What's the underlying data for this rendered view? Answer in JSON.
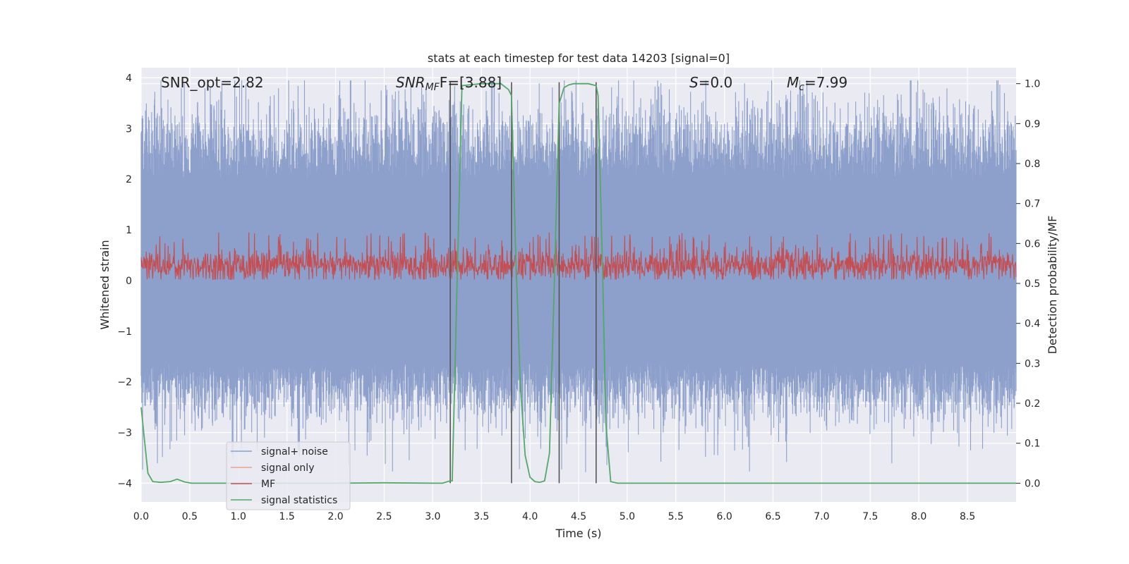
{
  "chart_data": {
    "type": "line",
    "title": "stats at each timestep for test data 14203 [signal=0]",
    "xlabel": "Time (s)",
    "ylabel_left": "Whitened strain",
    "ylabel_right": "Detection probability/MF",
    "xlim": [
      0,
      9.0
    ],
    "ylim_left": [
      -4.37,
      4.2
    ],
    "ylim_right": [
      -0.047,
      1.04
    ],
    "x_ticks": [
      "0.0",
      "0.5",
      "1.0",
      "1.5",
      "2.0",
      "2.5",
      "3.0",
      "3.5",
      "4.0",
      "4.5",
      "5.0",
      "5.5",
      "6.0",
      "6.5",
      "7.0",
      "7.5",
      "8.0",
      "8.5"
    ],
    "y_left_ticks": [
      "−4",
      "−3",
      "−2",
      "−1",
      "0",
      "1",
      "2",
      "3",
      "4"
    ],
    "y_right_ticks": [
      "0.0",
      "0.1",
      "0.2",
      "0.3",
      "0.4",
      "0.5",
      "0.6",
      "0.7",
      "0.8",
      "0.9",
      "1.0"
    ],
    "grid": true,
    "legend_position": "lower-left",
    "annotations": {
      "snr_opt": "SNR_opt=2.82",
      "snr_mf_main": "SNR",
      "snr_mf_sub": "MF",
      "snr_mf_rest": "F=[3.88]",
      "s_main": "S",
      "s_rest": "=0.0",
      "mc_main": "M",
      "mc_sub": "c",
      "mc_rest": "=7.99"
    },
    "series": [
      {
        "name": "signal+ noise",
        "axis": "left",
        "color": "#8da0cb",
        "description_envelope": [
          -2.5,
          3.6
        ]
      },
      {
        "name": "signal only",
        "axis": "left",
        "color": "#e8a48c"
      },
      {
        "name": "MF",
        "axis": "left",
        "color": "#c44e52"
      },
      {
        "name": "signal statistics",
        "axis": "right",
        "color": "#55a868",
        "x": [
          0.0,
          0.07,
          0.12,
          0.2,
          0.3,
          0.37,
          0.45,
          0.52,
          1.0,
          1.5,
          2.0,
          2.5,
          3.0,
          3.1,
          3.18,
          3.2,
          3.25,
          3.3,
          3.5,
          3.7,
          3.78,
          3.81,
          3.85,
          3.9,
          3.95,
          4.0,
          4.05,
          4.1,
          4.15,
          4.2,
          4.25,
          4.3,
          4.35,
          4.4,
          4.45,
          4.5,
          4.6,
          4.68,
          4.7,
          4.75,
          4.78,
          4.83,
          4.9,
          5.0,
          6.0,
          7.0,
          8.0,
          9.0
        ],
        "y": [
          0.19,
          0.025,
          0.004,
          0.002,
          0.004,
          0.01,
          0.003,
          0.0,
          0.0,
          0.0,
          0.0,
          0.001,
          0.0,
          0.0,
          0.006,
          0.006,
          0.5,
          0.995,
          1.0,
          1.0,
          0.985,
          0.97,
          0.6,
          0.25,
          0.07,
          0.015,
          0.004,
          0.002,
          0.006,
          0.075,
          0.5,
          0.95,
          0.99,
          0.997,
          1.0,
          1.0,
          1.0,
          0.995,
          0.97,
          0.5,
          0.15,
          0.004,
          0.0,
          0.0,
          0.0,
          0.0,
          0.0,
          0.0
        ]
      }
    ],
    "vertical_lines_x": [
      3.18,
      3.81,
      4.3,
      4.68
    ],
    "vertical_lines_color": "#555555"
  }
}
